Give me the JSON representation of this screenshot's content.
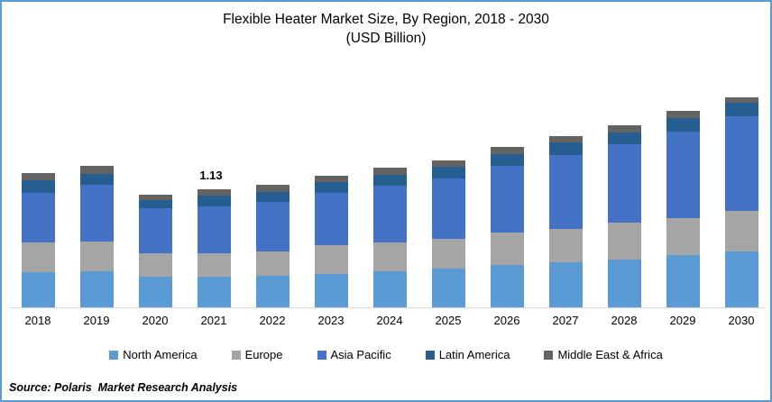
{
  "title": {
    "line1": "Flexible Heater Market Size, By Region, 2018 - 2030",
    "line2": "(USD Billion)"
  },
  "source": "Source: Polaris  Market Research Analysis",
  "colors": {
    "frame_border": "#5B9BD5",
    "axis_line": "#D9D9D9",
    "text": "#000000"
  },
  "chart_data": {
    "type": "bar",
    "stacked": true,
    "title": "Flexible Heater Market Size, By Region, 2018 - 2030 (USD Billion)",
    "xlabel": "",
    "ylabel": "USD Billion",
    "ylim": [
      0,
      2.2
    ],
    "grid": false,
    "legend_position": "bottom",
    "categories": [
      "2018",
      "2019",
      "2020",
      "2021",
      "2022",
      "2023",
      "2024",
      "2025",
      "2026",
      "2027",
      "2028",
      "2029",
      "2030"
    ],
    "series": [
      {
        "name": "North America",
        "color": "#5B9BD5",
        "values": [
          0.34,
          0.35,
          0.29,
          0.29,
          0.3,
          0.32,
          0.35,
          0.37,
          0.41,
          0.43,
          0.46,
          0.5,
          0.54
        ]
      },
      {
        "name": "Europe",
        "color": "#A5A5A5",
        "values": [
          0.28,
          0.28,
          0.23,
          0.23,
          0.24,
          0.28,
          0.27,
          0.29,
          0.31,
          0.32,
          0.35,
          0.36,
          0.39
        ]
      },
      {
        "name": "Asia Pacific",
        "color": "#4472C4",
        "values": [
          0.48,
          0.55,
          0.43,
          0.45,
          0.47,
          0.5,
          0.55,
          0.58,
          0.64,
          0.71,
          0.76,
          0.83,
          0.9
        ]
      },
      {
        "name": "Latin America",
        "color": "#255E91",
        "values": [
          0.12,
          0.1,
          0.08,
          0.1,
          0.1,
          0.1,
          0.1,
          0.11,
          0.11,
          0.12,
          0.11,
          0.13,
          0.13
        ]
      },
      {
        "name": "Middle East & Africa",
        "color": "#636363",
        "values": [
          0.07,
          0.08,
          0.05,
          0.06,
          0.07,
          0.06,
          0.07,
          0.06,
          0.07,
          0.06,
          0.07,
          0.07,
          0.06
        ]
      }
    ],
    "annotations": [
      {
        "category": "2021",
        "text": "1.13"
      }
    ],
    "totals": [
      1.29,
      1.36,
      1.08,
      1.13,
      1.18,
      1.26,
      1.34,
      1.41,
      1.54,
      1.64,
      1.75,
      1.89,
      2.02
    ]
  }
}
